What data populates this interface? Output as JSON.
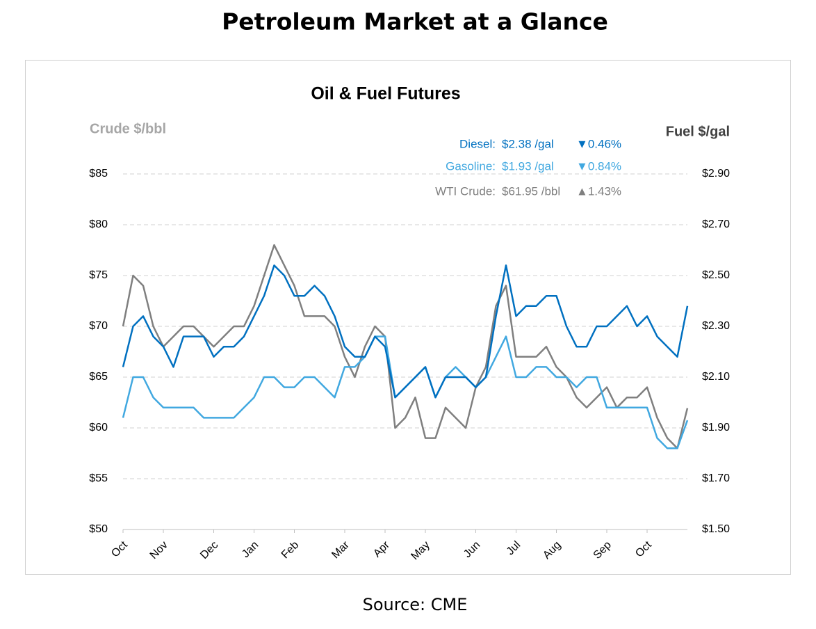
{
  "header": {
    "title": "Petroleum Market at a Glance"
  },
  "footer": {
    "source": "Source: CME"
  },
  "chart_data": {
    "type": "line",
    "title": "Oil & Fuel Futures",
    "y_label": "Crude $/bbl",
    "y2_label": "Fuel $/gal",
    "categories": [
      "Oct",
      null,
      null,
      null,
      "Nov",
      null,
      null,
      null,
      null,
      "Dec",
      null,
      null,
      null,
      "Jan",
      null,
      null,
      null,
      "Feb",
      null,
      null,
      null,
      null,
      "Mar",
      null,
      null,
      null,
      "Apr",
      null,
      null,
      null,
      "May",
      null,
      null,
      null,
      null,
      "Jun",
      null,
      null,
      null,
      "Jul",
      null,
      null,
      null,
      "Aug",
      null,
      null,
      null,
      null,
      "Sep",
      null,
      null,
      null,
      "Oct",
      null,
      null,
      null,
      null
    ],
    "ylim": [
      50,
      85
    ],
    "yticks": [
      {
        "value": 50,
        "label": "$50"
      },
      {
        "value": 55,
        "label": "$55"
      },
      {
        "value": 60,
        "label": "$60"
      },
      {
        "value": 65,
        "label": "$65"
      },
      {
        "value": 70,
        "label": "$70"
      },
      {
        "value": 75,
        "label": "$75"
      },
      {
        "value": 80,
        "label": "$80"
      },
      {
        "value": 85,
        "label": "$85"
      }
    ],
    "y2lim": [
      1.5,
      2.9
    ],
    "y2ticks": [
      {
        "value": 1.5,
        "label": "$1.50"
      },
      {
        "value": 1.7,
        "label": "$1.70"
      },
      {
        "value": 1.9,
        "label": "$1.90"
      },
      {
        "value": 2.1,
        "label": "$2.10"
      },
      {
        "value": 2.3,
        "label": "$2.30"
      },
      {
        "value": 2.5,
        "label": "$2.50"
      },
      {
        "value": 2.7,
        "label": "$2.70"
      },
      {
        "value": 2.9,
        "label": "$2.90"
      }
    ],
    "grid": true,
    "series": [
      {
        "name": "WTI Crude:",
        "price_label": "$61.95 /bbl",
        "change_label": "▲1.43%",
        "color": "#7f7f7f",
        "axis": "y",
        "values": [
          70,
          75,
          74,
          70,
          68,
          69,
          70,
          70,
          69,
          68,
          69,
          70,
          70,
          72,
          75,
          78,
          76,
          74,
          71,
          71,
          71,
          70,
          67,
          65,
          68,
          70,
          69,
          60,
          61,
          63,
          59,
          59,
          62,
          61,
          60,
          64,
          66,
          72,
          74,
          67,
          67,
          67,
          68,
          66,
          65,
          63,
          62,
          63,
          64,
          62,
          63,
          63,
          64,
          61,
          59,
          58,
          61.95
        ]
      },
      {
        "name": "Gasoline:",
        "price_label": "$1.93 /gal",
        "change_label": "▼0.84%",
        "color": "#41a8e0",
        "axis": "y2",
        "values": [
          1.94,
          2.1,
          2.1,
          2.02,
          1.98,
          1.98,
          1.98,
          1.98,
          1.94,
          1.94,
          1.94,
          1.94,
          1.98,
          2.02,
          2.1,
          2.1,
          2.06,
          2.06,
          2.1,
          2.1,
          2.06,
          2.02,
          2.14,
          2.14,
          2.18,
          2.26,
          2.26,
          2.02,
          2.06,
          2.1,
          2.14,
          2.02,
          2.1,
          2.14,
          2.1,
          2.06,
          2.1,
          2.18,
          2.26,
          2.1,
          2.1,
          2.14,
          2.14,
          2.1,
          2.1,
          2.06,
          2.1,
          2.1,
          1.98,
          1.98,
          1.98,
          1.98,
          1.98,
          1.86,
          1.82,
          1.82,
          1.93
        ]
      },
      {
        "name": "Diesel:",
        "price_label": "$2.38 /gal",
        "change_label": "▼0.46%",
        "color": "#0070c0",
        "axis": "y2",
        "values": [
          2.14,
          2.3,
          2.34,
          2.26,
          2.22,
          2.14,
          2.26,
          2.26,
          2.26,
          2.18,
          2.22,
          2.22,
          2.26,
          2.34,
          2.42,
          2.54,
          2.5,
          2.42,
          2.42,
          2.46,
          2.42,
          2.34,
          2.22,
          2.18,
          2.18,
          2.26,
          2.22,
          2.02,
          2.06,
          2.1,
          2.14,
          2.02,
          2.1,
          2.1,
          2.1,
          2.06,
          2.1,
          2.34,
          2.54,
          2.34,
          2.38,
          2.38,
          2.42,
          2.42,
          2.3,
          2.22,
          2.22,
          2.3,
          2.3,
          2.34,
          2.38,
          2.3,
          2.34,
          2.26,
          2.22,
          2.18,
          2.38
        ]
      }
    ]
  }
}
